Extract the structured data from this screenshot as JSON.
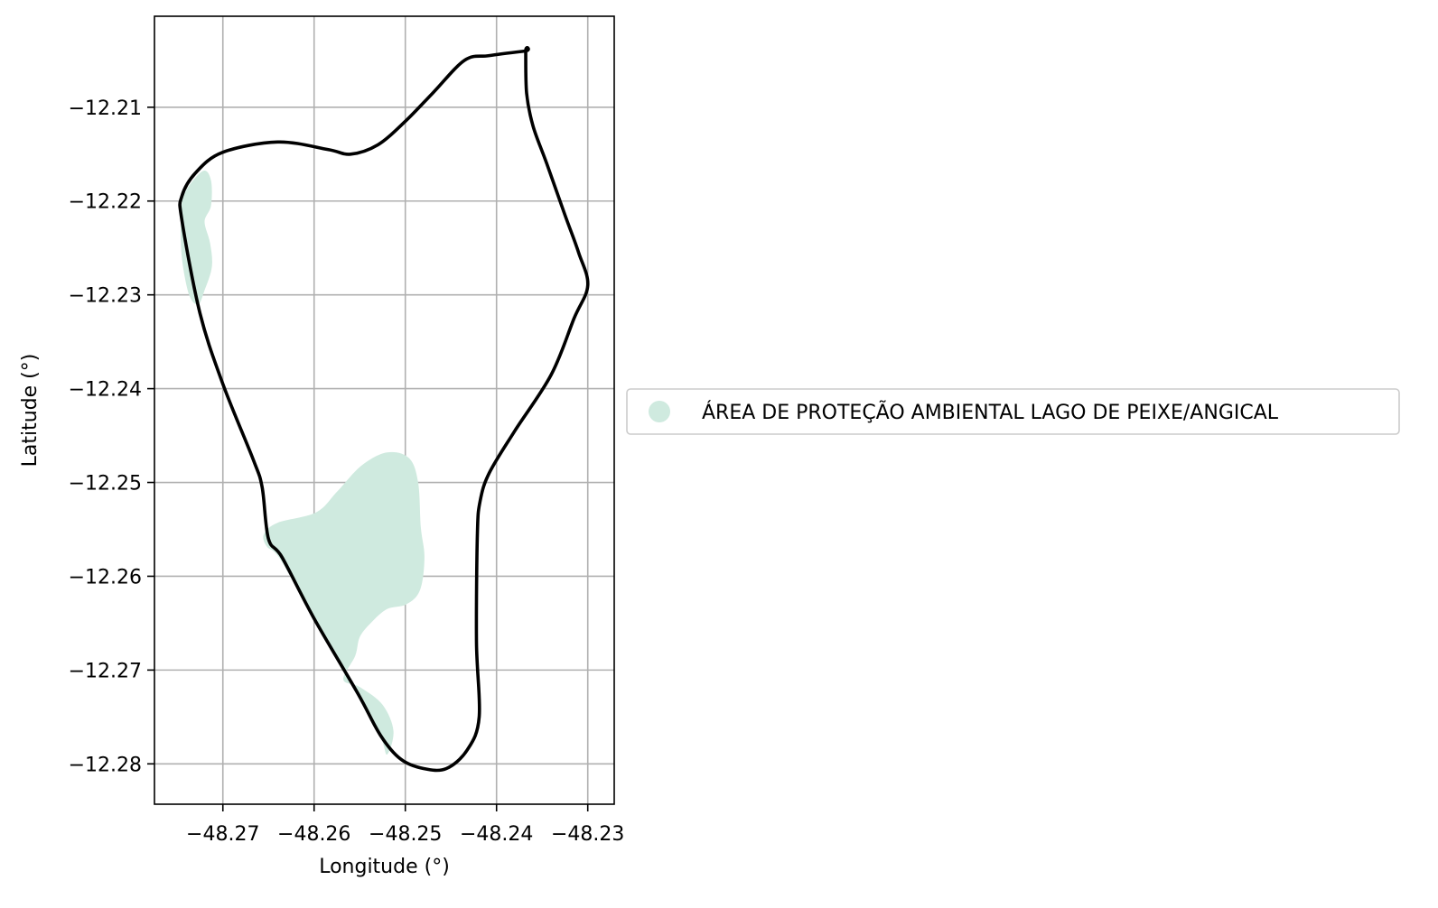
{
  "chart_data": {
    "type": "map",
    "xlabel": "Longitude (°)",
    "ylabel": "Latitude (°)",
    "xlim": [
      -48.2775,
      -48.2271
    ],
    "ylim": [
      -12.2843,
      -12.2003
    ],
    "x_ticks": [
      -48.27,
      -48.26,
      -48.25,
      -48.24,
      -48.23
    ],
    "x_tick_labels": [
      "−48.27",
      "−48.26",
      "−48.25",
      "−48.24",
      "−48.23"
    ],
    "y_ticks": [
      -12.21,
      -12.22,
      -12.23,
      -12.24,
      -12.25,
      -12.26,
      -12.27,
      -12.28
    ],
    "y_tick_labels": [
      "−12.21",
      "−12.22",
      "−12.23",
      "−12.24",
      "−12.25",
      "−12.26",
      "−12.27",
      "−12.28"
    ],
    "grid": true,
    "legend": {
      "placement": "right",
      "entries": [
        {
          "label": "ÁREA DE PROTEÇÃO AMBIENTAL LAGO DE PEIXE/ANGICAL",
          "color": "#cfeadf",
          "marker": "circle"
        }
      ]
    },
    "colors": {
      "boundary": "#000000",
      "protected_area": "#cfeadf",
      "grid": "#b0b0b0"
    },
    "boundary": [
      [
        -48.2368,
        -12.204
      ],
      [
        -48.2367,
        -12.2085
      ],
      [
        -48.236,
        -12.212
      ],
      [
        -48.2345,
        -12.216
      ],
      [
        -48.2325,
        -12.2215
      ],
      [
        -48.231,
        -12.2255
      ],
      [
        -48.23,
        -12.229
      ],
      [
        -48.2315,
        -12.2325
      ],
      [
        -48.234,
        -12.2385
      ],
      [
        -48.238,
        -12.2445
      ],
      [
        -48.2408,
        -12.249
      ],
      [
        -48.2418,
        -12.252
      ],
      [
        -48.2421,
        -12.2555
      ],
      [
        -48.2422,
        -12.267
      ],
      [
        -48.2419,
        -12.275
      ],
      [
        -48.2432,
        -12.2785
      ],
      [
        -48.2455,
        -12.2805
      ],
      [
        -48.248,
        -12.2805
      ],
      [
        -48.2505,
        -12.2795
      ],
      [
        -48.2527,
        -12.277
      ],
      [
        -48.2552,
        -12.2725
      ],
      [
        -48.26,
        -12.2645
      ],
      [
        -48.2635,
        -12.258
      ],
      [
        -48.265,
        -12.256
      ],
      [
        -48.2657,
        -12.2505
      ],
      [
        -48.2667,
        -12.2475
      ],
      [
        -48.27,
        -12.2395
      ],
      [
        -48.2725,
        -12.232
      ],
      [
        -48.2745,
        -12.222
      ],
      [
        -48.2745,
        -12.2195
      ],
      [
        -48.273,
        -12.217
      ],
      [
        -48.27,
        -12.2148
      ],
      [
        -48.264,
        -12.2137
      ],
      [
        -48.2585,
        -12.2145
      ],
      [
        -48.256,
        -12.215
      ],
      [
        -48.253,
        -12.214
      ],
      [
        -48.25,
        -12.2115
      ],
      [
        -48.247,
        -12.2085
      ],
      [
        -48.2435,
        -12.205
      ],
      [
        -48.2408,
        -12.2045
      ],
      [
        -48.2368,
        -12.204
      ]
    ],
    "protected_area_parts": [
      [
        [
          -48.2742,
          -12.2192
        ],
        [
          -48.2722,
          -12.2168
        ],
        [
          -48.2713,
          -12.2178
        ],
        [
          -48.2713,
          -12.2205
        ],
        [
          -48.272,
          -12.2222
        ],
        [
          -48.2714,
          -12.2245
        ],
        [
          -48.2712,
          -12.227
        ],
        [
          -48.272,
          -12.2295
        ],
        [
          -48.2727,
          -12.231
        ],
        [
          -48.2737,
          -12.23
        ],
        [
          -48.2745,
          -12.226
        ],
        [
          -48.2746,
          -12.222
        ]
      ],
      [
        [
          -48.2655,
          -12.2555
        ],
        [
          -48.264,
          -12.2543
        ],
        [
          -48.2598,
          -12.2532
        ],
        [
          -48.2575,
          -12.251
        ],
        [
          -48.2548,
          -12.2482
        ],
        [
          -48.252,
          -12.2468
        ],
        [
          -48.2496,
          -12.2474
        ],
        [
          -48.2486,
          -12.25
        ],
        [
          -48.2483,
          -12.2548
        ],
        [
          -48.2479,
          -12.258
        ],
        [
          -48.2484,
          -12.2615
        ],
        [
          -48.2499,
          -12.263
        ],
        [
          -48.252,
          -12.2635
        ],
        [
          -48.2538,
          -12.265
        ],
        [
          -48.255,
          -12.2665
        ],
        [
          -48.2555,
          -12.2685
        ],
        [
          -48.2568,
          -12.271
        ],
        [
          -48.255,
          -12.2718
        ],
        [
          -48.2525,
          -12.2737
        ],
        [
          -48.2513,
          -12.2765
        ],
        [
          -48.252,
          -12.279
        ],
        [
          -48.2527,
          -12.2772
        ],
        [
          -48.2552,
          -12.2727
        ],
        [
          -48.26,
          -12.2647
        ],
        [
          -48.2637,
          -12.2582
        ],
        [
          -48.2652,
          -12.2568
        ]
      ]
    ]
  }
}
